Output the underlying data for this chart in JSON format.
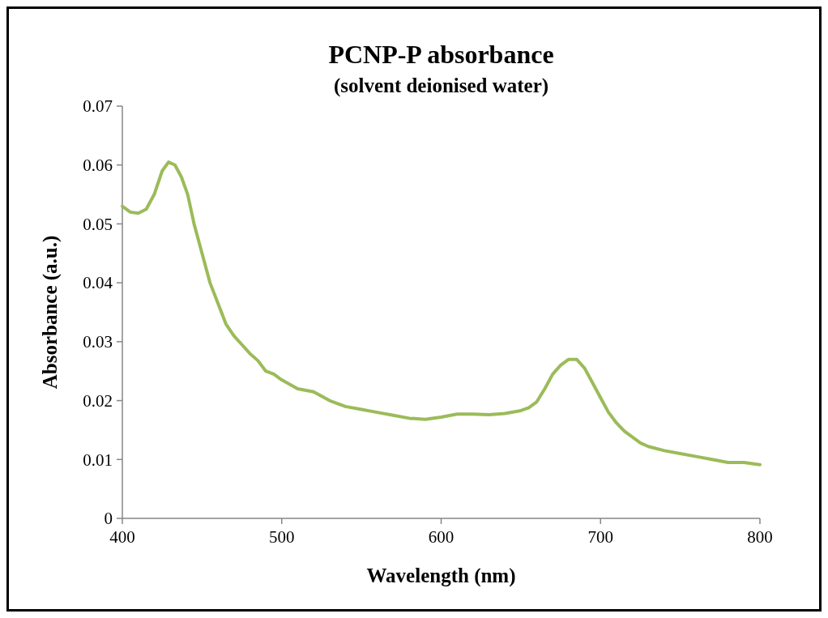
{
  "chart_data": {
    "type": "line",
    "title": "PCNP-P absorbance",
    "subtitle": "(solvent deionised water)",
    "xlabel": "Wavelength (nm)",
    "ylabel": "Absorbance (a.u.)",
    "xlim": [
      400,
      800
    ],
    "xticks": [
      400,
      500,
      600,
      700,
      800
    ],
    "ylim": [
      0,
      0.07
    ],
    "yticks": [
      0,
      0.01,
      0.02,
      0.03,
      0.04,
      0.05,
      0.06,
      0.07
    ],
    "grid": false,
    "marker": "none",
    "line_style": "solid",
    "series": [
      {
        "color": "#9bbb59",
        "x": [
          400,
          405,
          410,
          415,
          420,
          425,
          429,
          433,
          437,
          441,
          445,
          450,
          455,
          460,
          465,
          470,
          475,
          480,
          485,
          490,
          495,
          500,
          510,
          520,
          530,
          540,
          550,
          560,
          570,
          580,
          590,
          600,
          610,
          620,
          630,
          640,
          650,
          655,
          660,
          665,
          670,
          675,
          680,
          685,
          690,
          695,
          700,
          705,
          710,
          715,
          720,
          725,
          730,
          740,
          750,
          760,
          770,
          780,
          790,
          800
        ],
        "values": [
          0.053,
          0.052,
          0.0518,
          0.0525,
          0.055,
          0.059,
          0.0605,
          0.06,
          0.058,
          0.055,
          0.05,
          0.045,
          0.04,
          0.0365,
          0.033,
          0.031,
          0.0295,
          0.028,
          0.0268,
          0.025,
          0.0245,
          0.0235,
          0.022,
          0.0215,
          0.02,
          0.019,
          0.0185,
          0.018,
          0.0175,
          0.017,
          0.0168,
          0.0172,
          0.0177,
          0.0177,
          0.0176,
          0.0178,
          0.0183,
          0.0188,
          0.0198,
          0.022,
          0.0245,
          0.026,
          0.027,
          0.027,
          0.0255,
          0.023,
          0.0205,
          0.018,
          0.0162,
          0.0148,
          0.0138,
          0.0128,
          0.0122,
          0.0115,
          0.011,
          0.0105,
          0.01,
          0.0095,
          0.0095,
          0.0091
        ]
      }
    ]
  }
}
